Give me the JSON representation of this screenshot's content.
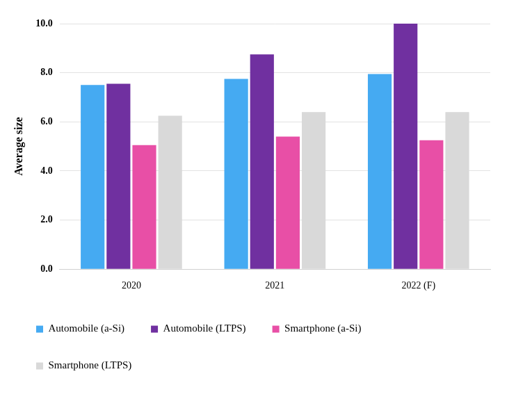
{
  "chart_data": {
    "type": "bar",
    "y_label": "Average size",
    "categories": [
      "2020",
      "2021",
      "2022 (F)"
    ],
    "series": [
      {
        "name": "Automobile (a-Si)",
        "color": "#45aaf2",
        "values": [
          7.5,
          7.75,
          7.95
        ]
      },
      {
        "name": "Automobile (LTPS)",
        "color": "#7030a0",
        "values": [
          7.55,
          8.75,
          10.0
        ]
      },
      {
        "name": "Smartphone (a-Si)",
        "color": "#e84fa6",
        "values": [
          5.05,
          5.4,
          5.25
        ]
      },
      {
        "name": "Smartphone (LTPS)",
        "color": "#d9d9d9",
        "values": [
          6.25,
          6.4,
          6.4
        ]
      }
    ],
    "ylim": [
      0,
      10
    ],
    "yticks": [
      {
        "value": 0,
        "label": "0.0"
      },
      {
        "value": 2,
        "label": "2.0"
      },
      {
        "value": 4,
        "label": "4.0"
      },
      {
        "value": 6,
        "label": "6.0"
      },
      {
        "value": 8,
        "label": "8.0"
      },
      {
        "value": 10,
        "label": "10.0"
      }
    ],
    "grid": true,
    "legend": "bottom"
  }
}
